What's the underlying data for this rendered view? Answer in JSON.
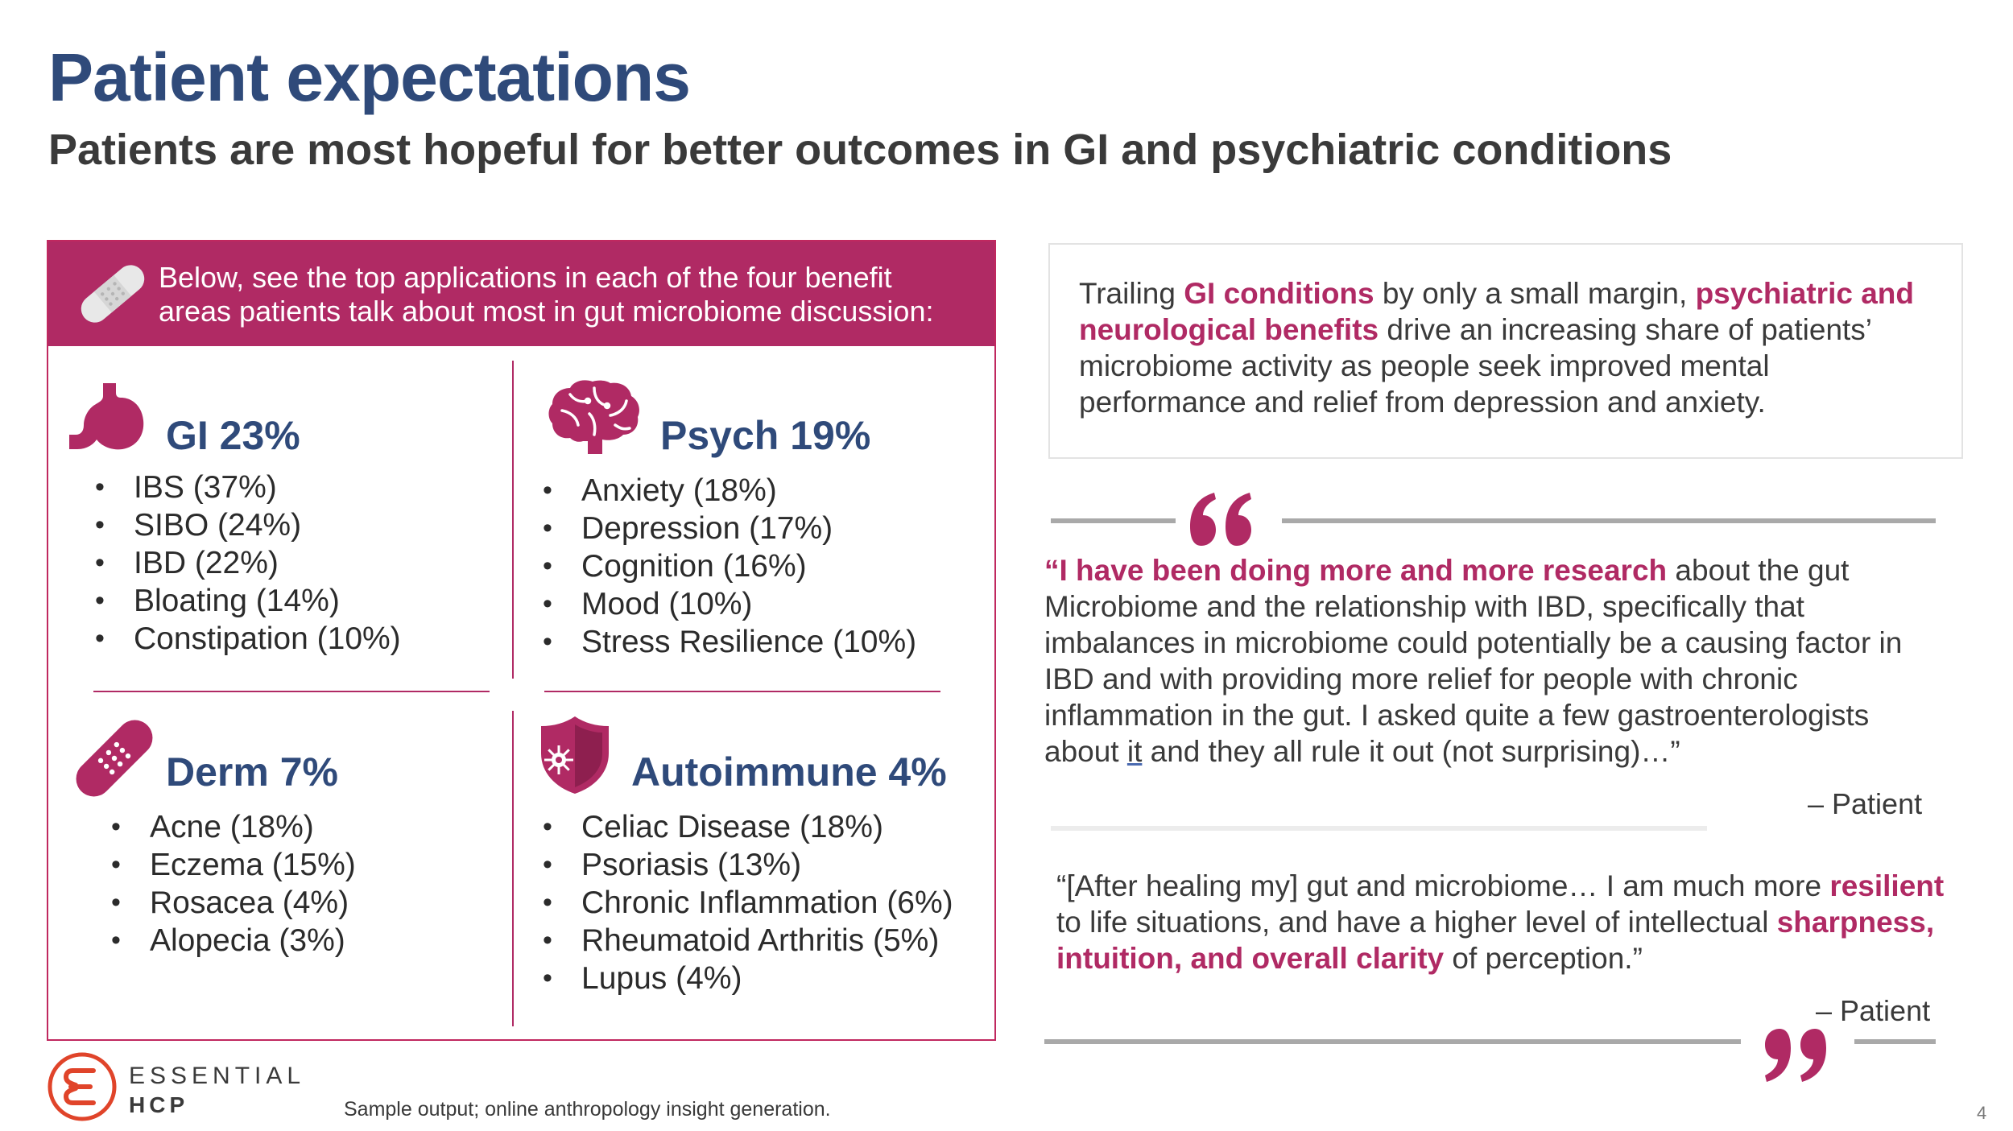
{
  "title": "Patient expectations",
  "subtitle": "Patients are most hopeful for better outcomes in GI and psychiatric conditions",
  "panel": {
    "header": "Below, see the top applications in each of the four benefit areas patients talk about most in gut microbiome discussion:",
    "quadrants": [
      {
        "title": "GI 23%",
        "icon": "stomach-icon",
        "items": [
          "IBS (37%)",
          "SIBO (24%)",
          "IBD (22%)",
          "Bloating (14%)",
          "Constipation (10%)"
        ]
      },
      {
        "title": "Psych 19%",
        "icon": "brain-icon",
        "items": [
          "Anxiety (18%)",
          "Depression (17%)",
          "Cognition (16%)",
          "Mood (10%)",
          "Stress Resilience (10%)"
        ]
      },
      {
        "title": "Derm 7%",
        "icon": "bandage-icon",
        "items": [
          "Acne (18%)",
          "Eczema (15%)",
          "Rosacea (4%)",
          "Alopecia (3%)"
        ]
      },
      {
        "title": "Autoimmune 4%",
        "icon": "shield-virus-icon",
        "items": [
          "Celiac Disease (18%)",
          "Psoriasis (13%)",
          "Chronic Inflammation (6%)",
          "Rheumatoid Arthritis (5%)",
          "Lupus (4%)"
        ]
      }
    ]
  },
  "callout": {
    "t1": "Trailing ",
    "h1": "GI conditions",
    "t2": " by only a small margin, ",
    "h2": "psychiatric and neurological benefits",
    "t3": " drive an increasing share of patients’ microbiome activity as people seek improved mental performance and relief from depression and anxiety."
  },
  "quote1": {
    "highlight": "“I have been doing more and more research",
    "t1": " about the gut Microbiome and the relationship with IBD, specifically that imbalances in microbiome could potentially be a causing factor in IBD and with providing more relief for people with chronic inflammation in the gut. I asked quite a few gastroenterologists about ",
    "link": "it",
    "t2": " and they all rule it out (not surprising)…”",
    "attribution": "– Patient"
  },
  "quote2": {
    "t1": "“[After healing my] gut and microbiome… I am much more ",
    "h1": "resilient",
    "t2": " to life situations, and have a higher level of intellectual ",
    "h2": "sharpness, intuition, and overall clarity",
    "t3": " of perception.”",
    "attribution": "– Patient"
  },
  "footer": {
    "brand_top": "ESSENTIAL",
    "brand_bottom": "HCP",
    "note": "Sample output; online anthropology insight generation.",
    "page": "4"
  },
  "colors": {
    "accent": "#b02a64",
    "title": "#2f4a7a",
    "text": "#3a3a3a",
    "logo": "#e0442a"
  }
}
